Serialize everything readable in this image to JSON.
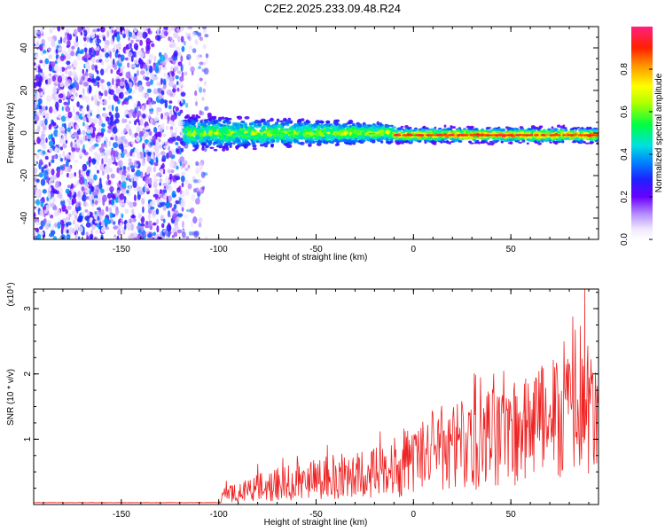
{
  "title": "C2E2.2025.233.09.48.R24",
  "chart_data": [
    {
      "type": "heatmap",
      "xlabel": "Height of straight line (km)",
      "ylabel": "Frequency (Hz)",
      "xlim": [
        -195,
        95
      ],
      "ylim": [
        -50,
        50
      ],
      "x_ticks": [
        -150,
        -100,
        -50,
        0,
        50
      ],
      "y_ticks": [
        -40,
        -20,
        0,
        20,
        40
      ],
      "colorbar": {
        "label": "Normalized spectral amplitude",
        "range": [
          0,
          1
        ],
        "ticks": [
          "0.0",
          "0.2",
          "0.4",
          "0.6",
          "0.8"
        ],
        "tick_values": [
          0,
          0.2,
          0.4,
          0.6,
          0.8
        ]
      },
      "regions": [
        {
          "x": [
            -195,
            -118
          ],
          "description_level": "noise",
          "amplitude": [
            0.05,
            0.4
          ]
        },
        {
          "x": [
            -118,
            -10
          ],
          "freq_center": 0,
          "freq_halfwidth": [
            8,
            4
          ],
          "amplitude": [
            0.3,
            0.5
          ]
        },
        {
          "x": [
            -10,
            95
          ],
          "freq_center": -1,
          "freq_halfwidth": 3,
          "amplitude": [
            0.6,
            1.0
          ]
        }
      ]
    },
    {
      "type": "line",
      "xlabel": "Height of straight line (km)",
      "ylabel": "SNR (10 * v/v)",
      "yscale_label": "(x10⁴)",
      "xlim": [
        -195,
        95
      ],
      "ylim": [
        0,
        3.3
      ],
      "x_ticks": [
        -150,
        -100,
        -50,
        0,
        50
      ],
      "y_ticks": [
        1,
        2,
        3
      ],
      "color": "#ee2222",
      "envelope": {
        "x": [
          -195,
          -100,
          -98,
          -90,
          -70,
          -50,
          -30,
          -10,
          0,
          10,
          30,
          50,
          70,
          90,
          95
        ],
        "mean": [
          0.03,
          0.03,
          0.15,
          0.18,
          0.25,
          0.3,
          0.42,
          0.55,
          0.6,
          0.8,
          1.05,
          1.3,
          1.45,
          1.5,
          1.5
        ],
        "peak": [
          0.03,
          0.03,
          0.35,
          0.45,
          0.8,
          0.95,
          1.0,
          1.4,
          1.6,
          1.9,
          2.1,
          2.2,
          2.8,
          3.3,
          2.3
        ]
      }
    }
  ]
}
